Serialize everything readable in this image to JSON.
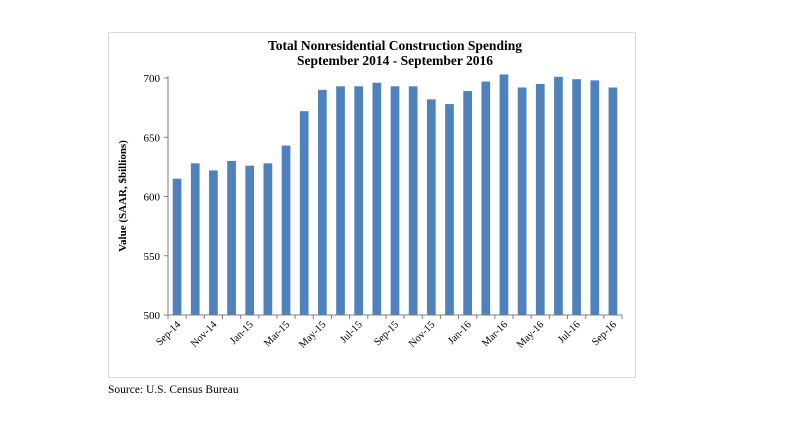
{
  "chart_data": {
    "type": "bar",
    "title": "Total Nonresidential Construction Spending",
    "subtitle": "September 2014 - September 2016",
    "xlabel": "",
    "ylabel": "Value (SAAR, $billions)",
    "ylim": [
      500,
      700
    ],
    "yticks": [
      500,
      550,
      600,
      650,
      700
    ],
    "categories": [
      "Sep-14",
      "Oct-14",
      "Nov-14",
      "Dec-14",
      "Jan-15",
      "Feb-15",
      "Mar-15",
      "Apr-15",
      "May-15",
      "Jun-15",
      "Jul-15",
      "Aug-15",
      "Sep-15",
      "Oct-15",
      "Nov-15",
      "Dec-15",
      "Jan-16",
      "Feb-16",
      "Mar-16",
      "Apr-16",
      "May-16",
      "Jun-16",
      "Jul-16",
      "Aug-16",
      "Sep-16"
    ],
    "tick_labels": [
      "Sep-14",
      "",
      "Nov-14",
      "",
      "Jan-15",
      "",
      "Mar-15",
      "",
      "May-15",
      "",
      "Jul-15",
      "",
      "Sep-15",
      "",
      "Nov-15",
      "",
      "Jan-16",
      "",
      "Mar-16",
      "",
      "May-16",
      "",
      "Jul-16",
      "",
      "Sep-16"
    ],
    "values": [
      615,
      628,
      622,
      630,
      626,
      628,
      643,
      672,
      690,
      693,
      693,
      696,
      693,
      693,
      682,
      678,
      689,
      697,
      703,
      692,
      695,
      701,
      699,
      698,
      692
    ],
    "bar_color": "#4f81bd",
    "grid": false,
    "legend": "none"
  },
  "source": "Source:  U.S. Census Bureau"
}
